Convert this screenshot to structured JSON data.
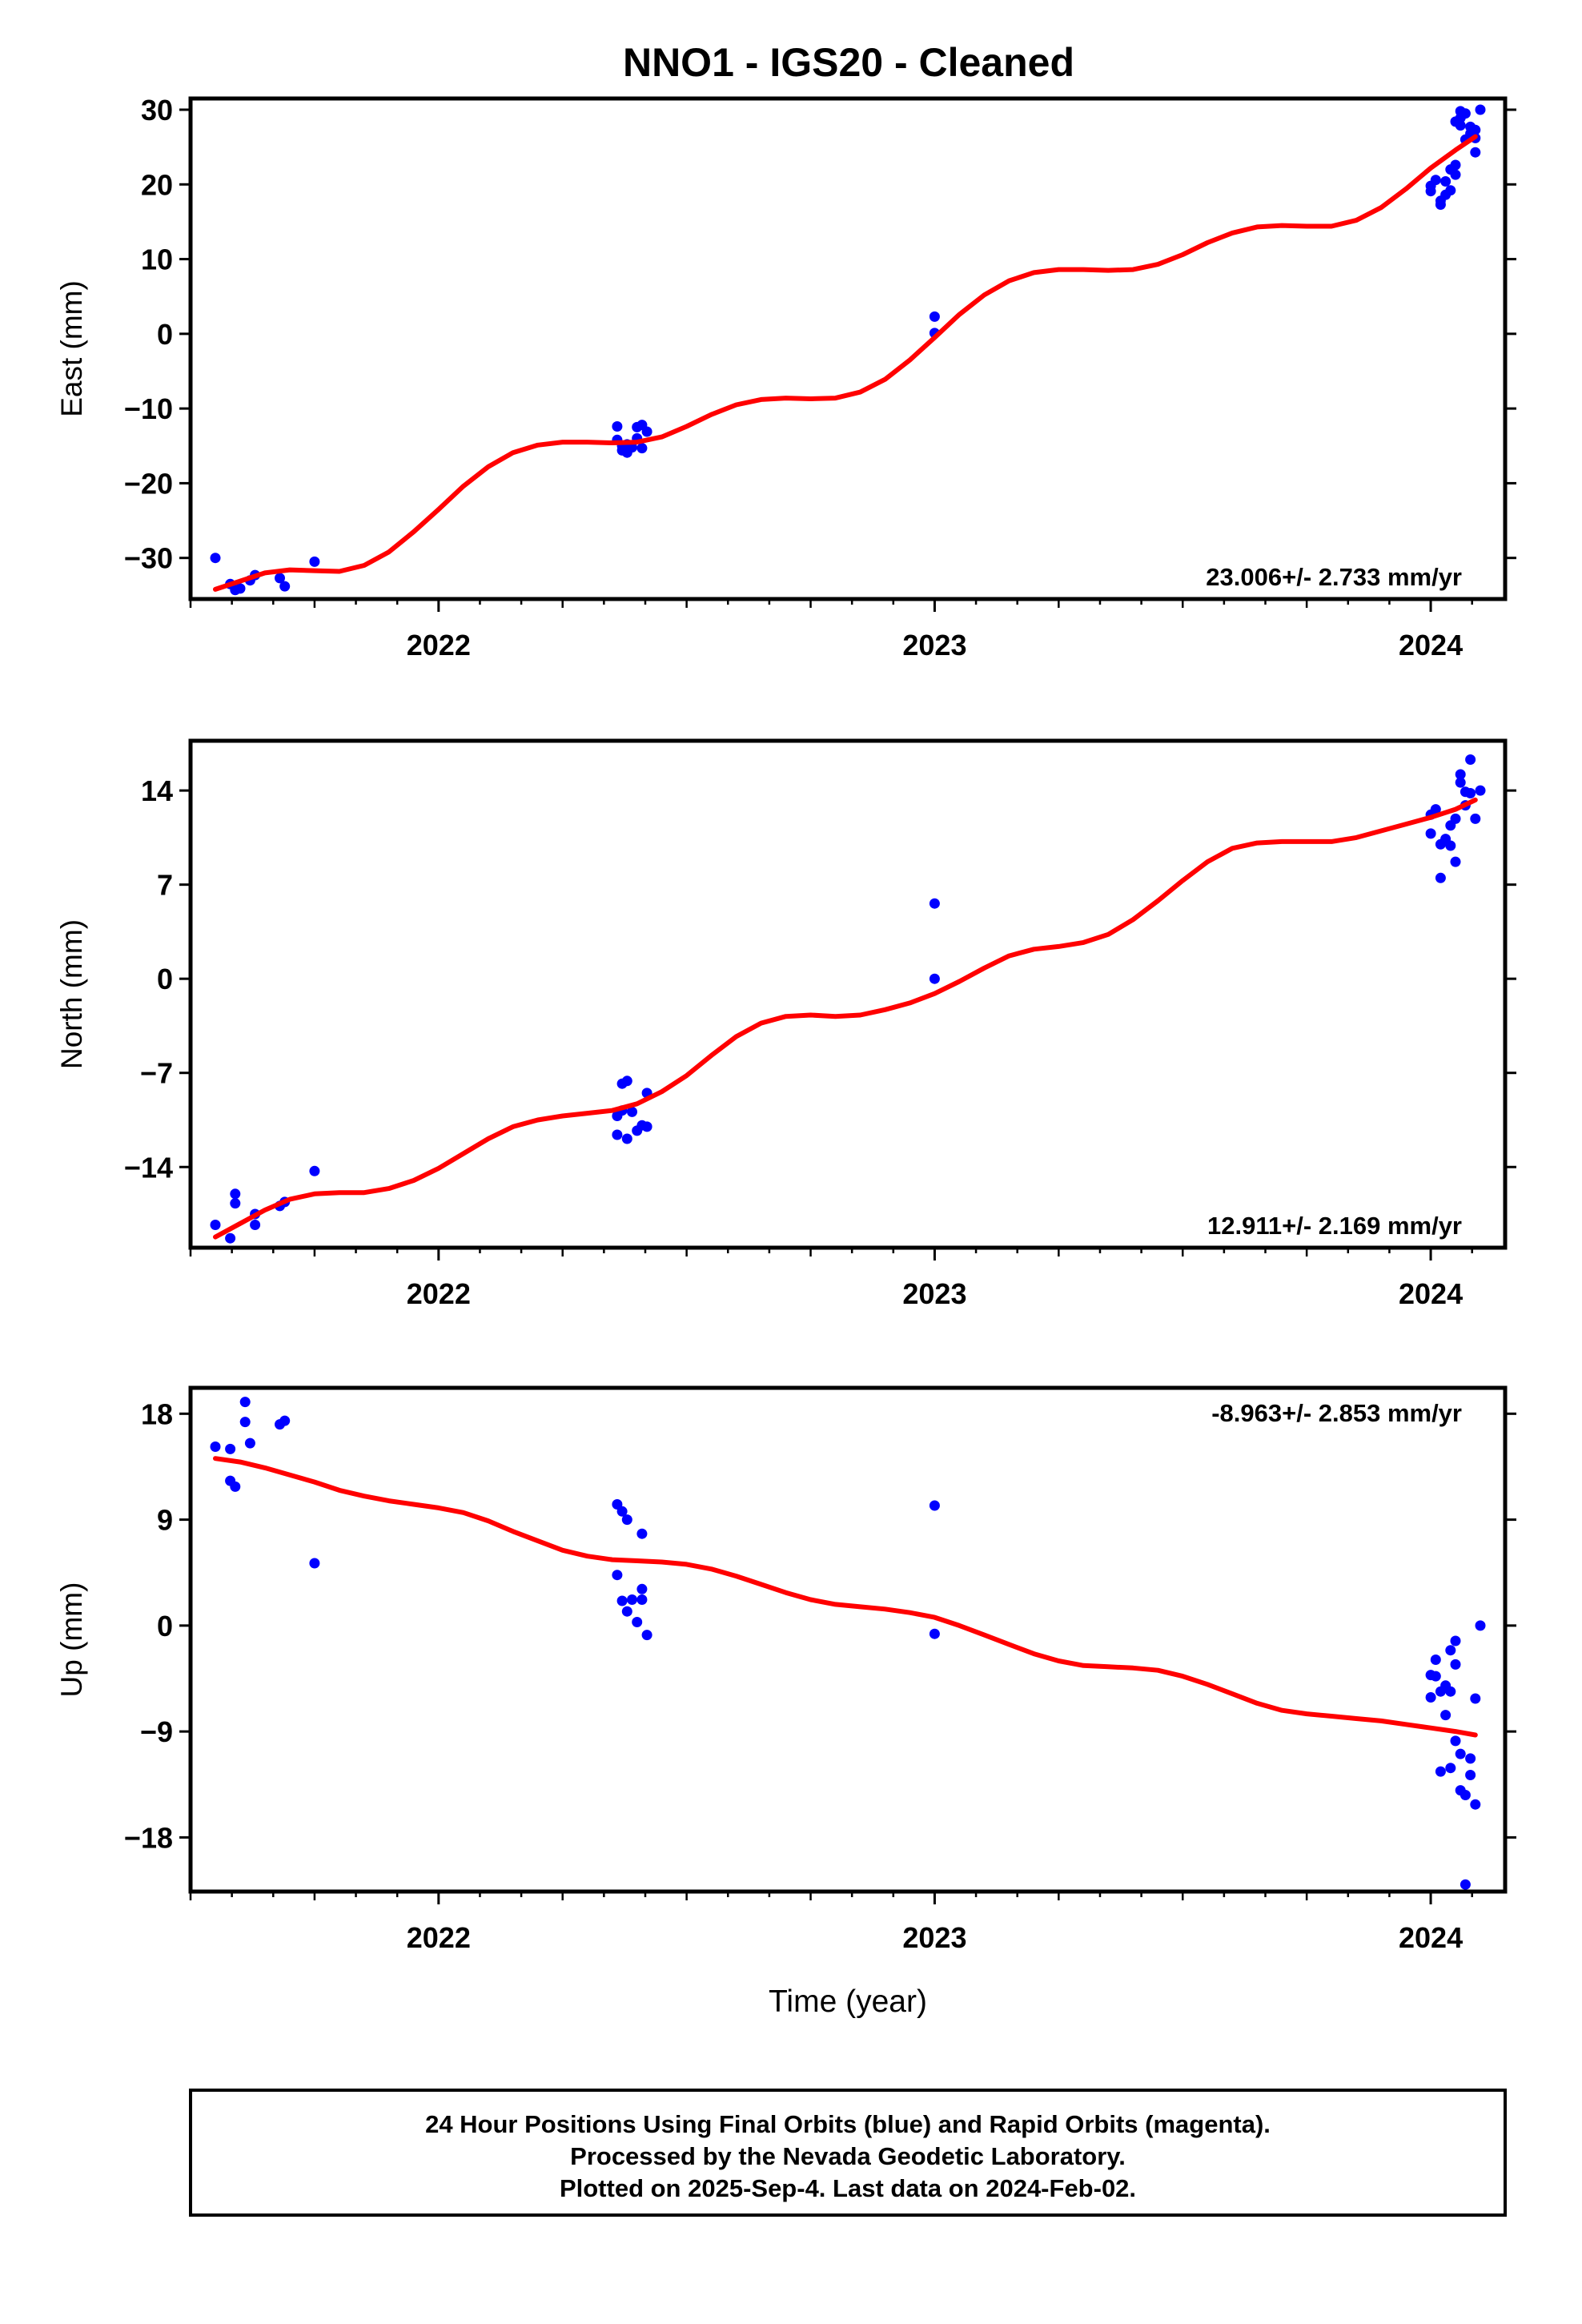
{
  "title": "NNO1  - IGS20 - Cleaned",
  "colors": {
    "final_orbits": "#0000ff",
    "model": "#ff0000",
    "axes": "#000000"
  },
  "chart_data": [
    {
      "type": "scatter",
      "ylabel": "East (mm)",
      "xlabel": "",
      "xlim": [
        2021.5,
        2024.15
      ],
      "ylim": [
        -35.5,
        31.5
      ],
      "yticks": [
        30,
        20,
        10,
        0,
        -10,
        -20,
        -30
      ],
      "ytick_labels": [
        "30",
        "20",
        "10",
        "0",
        "−10",
        "−20",
        "−30"
      ],
      "xticks": [
        2022,
        2023,
        2024
      ],
      "xtick_labels": [
        "2022",
        "2023",
        "2024"
      ],
      "rate_text": "23.006+/- 2.733 mm/yr",
      "rate_position": "bottom-right",
      "points": [
        [
          2021.55,
          -30.0
        ],
        [
          2021.58,
          -33.5
        ],
        [
          2021.59,
          -34.3
        ],
        [
          2021.6,
          -34.1
        ],
        [
          2021.62,
          -33.0
        ],
        [
          2021.63,
          -32.3
        ],
        [
          2021.68,
          -32.7
        ],
        [
          2021.69,
          -33.8
        ],
        [
          2021.75,
          -30.5
        ],
        [
          2022.36,
          -12.4
        ],
        [
          2022.36,
          -14.2
        ],
        [
          2022.37,
          -15.0
        ],
        [
          2022.37,
          -15.6
        ],
        [
          2022.38,
          -14.8
        ],
        [
          2022.38,
          -15.9
        ],
        [
          2022.39,
          -15.2
        ],
        [
          2022.4,
          -12.5
        ],
        [
          2022.4,
          -14.0
        ],
        [
          2022.41,
          -15.3
        ],
        [
          2022.41,
          -12.2
        ],
        [
          2022.42,
          -13.1
        ],
        [
          2023.0,
          2.3
        ],
        [
          2023.0,
          0.1
        ],
        [
          2024.0,
          19.8
        ],
        [
          2024.0,
          19.1
        ],
        [
          2024.01,
          20.6
        ],
        [
          2024.02,
          17.8
        ],
        [
          2024.02,
          17.3
        ],
        [
          2024.03,
          18.6
        ],
        [
          2024.03,
          20.4
        ],
        [
          2024.04,
          19.2
        ],
        [
          2024.04,
          22.0
        ],
        [
          2024.05,
          21.3
        ],
        [
          2024.05,
          22.6
        ],
        [
          2024.05,
          28.4
        ],
        [
          2024.06,
          28.9
        ],
        [
          2024.06,
          29.8
        ],
        [
          2024.06,
          27.9
        ],
        [
          2024.07,
          26.0
        ],
        [
          2024.07,
          29.5
        ],
        [
          2024.08,
          27.7
        ],
        [
          2024.08,
          26.8
        ],
        [
          2024.09,
          24.3
        ],
        [
          2024.09,
          26.2
        ],
        [
          2024.09,
          27.3
        ],
        [
          2024.1,
          30.0
        ]
      ],
      "model": [
        [
          2021.55,
          -34.2
        ],
        [
          2021.6,
          -33.1
        ],
        [
          2021.65,
          -32.0
        ],
        [
          2021.7,
          -31.6
        ],
        [
          2021.75,
          -31.7
        ],
        [
          2021.8,
          -31.8
        ],
        [
          2021.85,
          -31.0
        ],
        [
          2021.9,
          -29.2
        ],
        [
          2021.95,
          -26.5
        ],
        [
          2022.0,
          -23.5
        ],
        [
          2022.05,
          -20.4
        ],
        [
          2022.1,
          -17.8
        ],
        [
          2022.15,
          -15.9
        ],
        [
          2022.2,
          -14.9
        ],
        [
          2022.25,
          -14.5
        ],
        [
          2022.3,
          -14.5
        ],
        [
          2022.35,
          -14.6
        ],
        [
          2022.4,
          -14.5
        ],
        [
          2022.45,
          -13.8
        ],
        [
          2022.5,
          -12.4
        ],
        [
          2022.55,
          -10.8
        ],
        [
          2022.6,
          -9.5
        ],
        [
          2022.65,
          -8.8
        ],
        [
          2022.7,
          -8.6
        ],
        [
          2022.75,
          -8.7
        ],
        [
          2022.8,
          -8.6
        ],
        [
          2022.85,
          -7.8
        ],
        [
          2022.9,
          -6.1
        ],
        [
          2022.95,
          -3.5
        ],
        [
          2023.0,
          -0.5
        ],
        [
          2023.05,
          2.6
        ],
        [
          2023.1,
          5.2
        ],
        [
          2023.15,
          7.1
        ],
        [
          2023.2,
          8.2
        ],
        [
          2023.25,
          8.6
        ],
        [
          2023.3,
          8.6
        ],
        [
          2023.35,
          8.5
        ],
        [
          2023.4,
          8.6
        ],
        [
          2023.45,
          9.3
        ],
        [
          2023.5,
          10.6
        ],
        [
          2023.55,
          12.2
        ],
        [
          2023.6,
          13.5
        ],
        [
          2023.65,
          14.3
        ],
        [
          2023.7,
          14.5
        ],
        [
          2023.75,
          14.4
        ],
        [
          2023.8,
          14.4
        ],
        [
          2023.85,
          15.2
        ],
        [
          2023.9,
          16.9
        ],
        [
          2023.95,
          19.4
        ],
        [
          2024.0,
          22.2
        ],
        [
          2024.05,
          24.6
        ],
        [
          2024.09,
          26.4
        ]
      ]
    },
    {
      "type": "scatter",
      "ylabel": "North (mm)",
      "xlabel": "",
      "xlim": [
        2021.5,
        2024.15
      ],
      "ylim": [
        -20,
        17.7
      ],
      "yticks": [
        14,
        7,
        0,
        -7,
        -14
      ],
      "ytick_labels": [
        "14",
        "7",
        "0",
        "−7",
        "−14"
      ],
      "xticks": [
        2022,
        2023,
        2024
      ],
      "xtick_labels": [
        "2022",
        "2023",
        "2024"
      ],
      "rate_text": "12.911+/- 2.169 mm/yr",
      "rate_position": "bottom-right",
      "points": [
        [
          2021.55,
          -18.3
        ],
        [
          2021.58,
          -19.3
        ],
        [
          2021.59,
          -16.7
        ],
        [
          2021.59,
          -16.0
        ],
        [
          2021.63,
          -18.3
        ],
        [
          2021.63,
          -17.5
        ],
        [
          2021.68,
          -16.9
        ],
        [
          2021.69,
          -16.6
        ],
        [
          2021.75,
          -14.3
        ],
        [
          2022.36,
          -10.2
        ],
        [
          2022.36,
          -11.6
        ],
        [
          2022.37,
          -9.8
        ],
        [
          2022.37,
          -7.8
        ],
        [
          2022.38,
          -11.9
        ],
        [
          2022.38,
          -7.6
        ],
        [
          2022.39,
          -9.9
        ],
        [
          2022.4,
          -11.3
        ],
        [
          2022.41,
          -10.9
        ],
        [
          2022.42,
          -8.5
        ],
        [
          2022.42,
          -11.0
        ],
        [
          2023.0,
          5.6
        ],
        [
          2023.0,
          0.0
        ],
        [
          2024.0,
          12.2
        ],
        [
          2024.0,
          10.8
        ],
        [
          2024.01,
          12.6
        ],
        [
          2024.02,
          10.0
        ],
        [
          2024.02,
          7.5
        ],
        [
          2024.03,
          10.4
        ],
        [
          2024.04,
          11.4
        ],
        [
          2024.04,
          9.9
        ],
        [
          2024.05,
          11.9
        ],
        [
          2024.05,
          8.7
        ],
        [
          2024.06,
          15.2
        ],
        [
          2024.06,
          14.6
        ],
        [
          2024.07,
          13.9
        ],
        [
          2024.07,
          12.9
        ],
        [
          2024.08,
          16.3
        ],
        [
          2024.08,
          13.8
        ],
        [
          2024.09,
          11.9
        ],
        [
          2024.1,
          14.0
        ]
      ],
      "model": [
        [
          2021.55,
          -19.2
        ],
        [
          2021.6,
          -18.2
        ],
        [
          2021.65,
          -17.2
        ],
        [
          2021.7,
          -16.4
        ],
        [
          2021.75,
          -16.0
        ],
        [
          2021.8,
          -15.9
        ],
        [
          2021.85,
          -15.9
        ],
        [
          2021.9,
          -15.6
        ],
        [
          2021.95,
          -15.0
        ],
        [
          2022.0,
          -14.1
        ],
        [
          2022.05,
          -13.0
        ],
        [
          2022.1,
          -11.9
        ],
        [
          2022.15,
          -11.0
        ],
        [
          2022.2,
          -10.5
        ],
        [
          2022.25,
          -10.2
        ],
        [
          2022.3,
          -10.0
        ],
        [
          2022.35,
          -9.8
        ],
        [
          2022.4,
          -9.3
        ],
        [
          2022.45,
          -8.4
        ],
        [
          2022.5,
          -7.2
        ],
        [
          2022.55,
          -5.7
        ],
        [
          2022.6,
          -4.3
        ],
        [
          2022.65,
          -3.3
        ],
        [
          2022.7,
          -2.8
        ],
        [
          2022.75,
          -2.7
        ],
        [
          2022.8,
          -2.8
        ],
        [
          2022.85,
          -2.7
        ],
        [
          2022.9,
          -2.3
        ],
        [
          2022.95,
          -1.8
        ],
        [
          2023.0,
          -1.1
        ],
        [
          2023.05,
          -0.2
        ],
        [
          2023.1,
          0.8
        ],
        [
          2023.15,
          1.7
        ],
        [
          2023.2,
          2.2
        ],
        [
          2023.25,
          2.4
        ],
        [
          2023.3,
          2.7
        ],
        [
          2023.35,
          3.3
        ],
        [
          2023.4,
          4.4
        ],
        [
          2023.45,
          5.8
        ],
        [
          2023.5,
          7.3
        ],
        [
          2023.55,
          8.7
        ],
        [
          2023.6,
          9.7
        ],
        [
          2023.65,
          10.1
        ],
        [
          2023.7,
          10.2
        ],
        [
          2023.75,
          10.2
        ],
        [
          2023.8,
          10.2
        ],
        [
          2023.85,
          10.5
        ],
        [
          2023.9,
          11.0
        ],
        [
          2023.95,
          11.5
        ],
        [
          2024.0,
          12.0
        ],
        [
          2024.05,
          12.6
        ],
        [
          2024.09,
          13.3
        ]
      ]
    },
    {
      "type": "scatter",
      "ylabel": "Up (mm)",
      "xlabel": "Time (year)",
      "xlim": [
        2021.5,
        2024.15
      ],
      "ylim": [
        -22.6,
        20.2
      ],
      "yticks": [
        18,
        9,
        0,
        -9,
        -18
      ],
      "ytick_labels": [
        "18",
        "9",
        "0",
        "−9",
        "−18"
      ],
      "xticks": [
        2022,
        2023,
        2024
      ],
      "xtick_labels": [
        "2022",
        "2023",
        "2024"
      ],
      "rate_text": "-8.963+/- 2.853 mm/yr",
      "rate_position": "top-right",
      "points": [
        [
          2021.55,
          15.2
        ],
        [
          2021.58,
          15.0
        ],
        [
          2021.58,
          12.3
        ],
        [
          2021.59,
          11.8
        ],
        [
          2021.61,
          19.0
        ],
        [
          2021.61,
          17.3
        ],
        [
          2021.62,
          15.5
        ],
        [
          2021.68,
          17.1
        ],
        [
          2021.69,
          17.4
        ],
        [
          2021.75,
          5.3
        ],
        [
          2022.36,
          10.3
        ],
        [
          2022.36,
          4.3
        ],
        [
          2022.37,
          2.1
        ],
        [
          2022.37,
          9.7
        ],
        [
          2022.38,
          9.0
        ],
        [
          2022.38,
          1.2
        ],
        [
          2022.39,
          2.2
        ],
        [
          2022.4,
          0.3
        ],
        [
          2022.41,
          7.8
        ],
        [
          2022.41,
          3.1
        ],
        [
          2022.41,
          2.2
        ],
        [
          2022.42,
          -0.8
        ],
        [
          2023.0,
          10.2
        ],
        [
          2023.0,
          -0.7
        ],
        [
          2024.0,
          -4.2
        ],
        [
          2024.0,
          -6.1
        ],
        [
          2024.01,
          -2.9
        ],
        [
          2024.01,
          -4.3
        ],
        [
          2024.02,
          -12.4
        ],
        [
          2024.02,
          -5.6
        ],
        [
          2024.03,
          -7.6
        ],
        [
          2024.03,
          -5.1
        ],
        [
          2024.04,
          -2.1
        ],
        [
          2024.04,
          -5.6
        ],
        [
          2024.04,
          -12.1
        ],
        [
          2024.05,
          -1.3
        ],
        [
          2024.05,
          -3.3
        ],
        [
          2024.05,
          -9.8
        ],
        [
          2024.06,
          -14.0
        ],
        [
          2024.06,
          -10.9
        ],
        [
          2024.07,
          -14.4
        ],
        [
          2024.07,
          -22.0
        ],
        [
          2024.08,
          -11.3
        ],
        [
          2024.08,
          -12.7
        ],
        [
          2024.09,
          -15.2
        ],
        [
          2024.09,
          -6.2
        ],
        [
          2024.1,
          0.0
        ]
      ],
      "model": [
        [
          2021.55,
          14.2
        ],
        [
          2021.6,
          13.9
        ],
        [
          2021.65,
          13.4
        ],
        [
          2021.7,
          12.8
        ],
        [
          2021.75,
          12.2
        ],
        [
          2021.8,
          11.5
        ],
        [
          2021.85,
          11.0
        ],
        [
          2021.9,
          10.6
        ],
        [
          2021.95,
          10.3
        ],
        [
          2022.0,
          10.0
        ],
        [
          2022.05,
          9.6
        ],
        [
          2022.1,
          8.9
        ],
        [
          2022.15,
          8.0
        ],
        [
          2022.2,
          7.2
        ],
        [
          2022.25,
          6.4
        ],
        [
          2022.3,
          5.9
        ],
        [
          2022.35,
          5.6
        ],
        [
          2022.4,
          5.5
        ],
        [
          2022.45,
          5.4
        ],
        [
          2022.5,
          5.2
        ],
        [
          2022.55,
          4.8
        ],
        [
          2022.6,
          4.2
        ],
        [
          2022.65,
          3.5
        ],
        [
          2022.7,
          2.8
        ],
        [
          2022.75,
          2.2
        ],
        [
          2022.8,
          1.8
        ],
        [
          2022.85,
          1.6
        ],
        [
          2022.9,
          1.4
        ],
        [
          2022.95,
          1.1
        ],
        [
          2023.0,
          0.7
        ],
        [
          2023.05,
          0.0
        ],
        [
          2023.1,
          -0.8
        ],
        [
          2023.15,
          -1.6
        ],
        [
          2023.2,
          -2.4
        ],
        [
          2023.25,
          -3.0
        ],
        [
          2023.3,
          -3.4
        ],
        [
          2023.35,
          -3.5
        ],
        [
          2023.4,
          -3.6
        ],
        [
          2023.45,
          -3.8
        ],
        [
          2023.5,
          -4.3
        ],
        [
          2023.55,
          -5.0
        ],
        [
          2023.6,
          -5.8
        ],
        [
          2023.65,
          -6.6
        ],
        [
          2023.7,
          -7.2
        ],
        [
          2023.75,
          -7.5
        ],
        [
          2023.8,
          -7.7
        ],
        [
          2023.85,
          -7.9
        ],
        [
          2023.9,
          -8.1
        ],
        [
          2023.95,
          -8.4
        ],
        [
          2024.0,
          -8.7
        ],
        [
          2024.05,
          -9.0
        ],
        [
          2024.09,
          -9.3
        ]
      ]
    }
  ],
  "footer": {
    "line1": "24 Hour Positions Using Final Orbits (blue) and Rapid Orbits (magenta).",
    "line2": "Processed by the Nevada Geodetic Laboratory.",
    "line3": "Plotted on 2025-Sep-4. Last data on 2024-Feb-02."
  }
}
